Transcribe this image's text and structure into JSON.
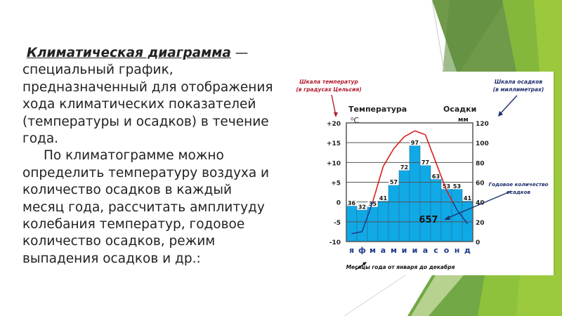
{
  "slide": {
    "definition": {
      "term": "Климатическая диаграмма",
      "dash": " —",
      "lines": [
        "специальный график,",
        "предназначенный для  отображения",
        "хода климатических показателей",
        "(температуры и осадков)  в течение",
        "года."
      ]
    },
    "usage": {
      "lines": [
        "По климатограмме можно",
        "определить температуру воздуха и",
        "количество осадков в каждый",
        "месяц года, рассчитать амплитуду",
        "колебания температур, годовое",
        "количество осадков, режим",
        "выпадения осадков и др.:"
      ]
    }
  },
  "annotations": {
    "temp_scale": [
      "Шкала температур",
      "(в градусах Цельсия)"
    ],
    "precip_scale": [
      "Шкала осадков",
      "(в миллиметрах)"
    ],
    "annual_total": [
      "Годовое количество",
      "осадков"
    ],
    "months_note": "Месяцы года от января до декабря",
    "temp_title": "Температура",
    "temp_unit": "⁰C",
    "precip_title": "Осадки",
    "precip_unit": "мм",
    "total_value": "657"
  },
  "colors": {
    "bar": "#0fa9e6",
    "temp_line_warm": "#d61f1f",
    "temp_line_cold": "#1f3b8f",
    "annotation_red": "#b01c2e",
    "annotation_blue": "#1e2f6e",
    "month_label": "#1e3a8a",
    "green_dark": "#6e9a4a",
    "green_mid": "#7fb53a",
    "green_light": "#9bc83c"
  },
  "chart_data": {
    "type": "bar",
    "title": "Климатическая диаграмма",
    "categories": [
      "я",
      "ф",
      "м",
      "а",
      "м",
      "и",
      "и",
      "а",
      "с",
      "о",
      "н",
      "д"
    ],
    "xlabel": "Месяцы года от января до декабря",
    "series": [
      {
        "name": "Осадки",
        "type": "bar",
        "axis": "right",
        "unit": "мм",
        "values": [
          36,
          32,
          35,
          41,
          57,
          72,
          97,
          77,
          63,
          53,
          53,
          41
        ]
      },
      {
        "name": "Температура",
        "type": "line",
        "axis": "left",
        "unit": "°C",
        "values": [
          -8,
          -7.5,
          0,
          9,
          13.5,
          16.5,
          18,
          17,
          10,
          3,
          -2,
          -5.5
        ]
      }
    ],
    "y_left": {
      "label": "Температура",
      "unit": "⁰C",
      "range": [
        -10,
        20
      ],
      "ticks": [
        "-10",
        "-5",
        "0",
        "+5",
        "+10",
        "+15",
        "+20"
      ]
    },
    "y_right": {
      "label": "Осадки",
      "unit": "мм",
      "range": [
        0,
        120
      ],
      "ticks": [
        "0",
        "20",
        "40",
        "60",
        "80",
        "100",
        "120"
      ]
    },
    "annual_total": 657,
    "grid": true
  }
}
